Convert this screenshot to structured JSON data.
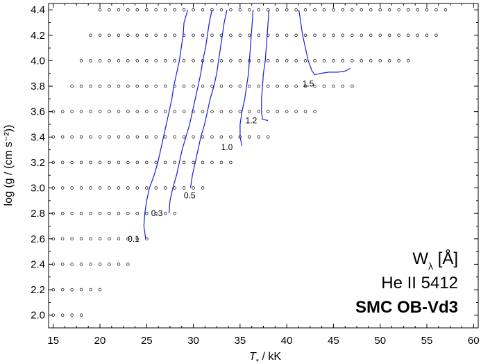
{
  "chart_data": {
    "type": "scatter",
    "xlabel_main": "T",
    "xlabel_sub": "*",
    "xlabel_unit": " / kK",
    "ylabel": "log (g / (cm s⁻²))",
    "xlim": [
      14.5,
      60.5
    ],
    "ylim": [
      1.9,
      4.45
    ],
    "x_ticks": [
      "15",
      "20",
      "25",
      "30",
      "35",
      "40",
      "45",
      "50",
      "55",
      "60"
    ],
    "y_ticks": [
      "2.0",
      "2.2",
      "2.4",
      "2.6",
      "2.8",
      "3.0",
      "3.2",
      "3.4",
      "3.6",
      "3.8",
      "4.0",
      "4.2",
      "4.4"
    ],
    "grid": false,
    "model_grid": [
      {
        "logg": 2.0,
        "teff": [
          15,
          16,
          17,
          18
        ]
      },
      {
        "logg": 2.2,
        "teff": [
          15,
          16,
          17,
          18,
          19,
          20
        ]
      },
      {
        "logg": 2.4,
        "teff": [
          15,
          16,
          17,
          18,
          19,
          20,
          21,
          22,
          23
        ]
      },
      {
        "logg": 2.6,
        "teff": [
          15,
          16,
          17,
          18,
          19,
          20,
          21,
          22,
          23,
          24,
          25
        ]
      },
      {
        "logg": 2.8,
        "teff": [
          15,
          16,
          17,
          18,
          19,
          20,
          21,
          22,
          23,
          24,
          25,
          26,
          27,
          28
        ]
      },
      {
        "logg": 3.0,
        "teff": [
          15,
          16,
          17,
          18,
          19,
          20,
          21,
          22,
          23,
          24,
          25,
          26,
          27,
          28,
          29,
          30,
          31
        ]
      },
      {
        "logg": 3.2,
        "teff": [
          15,
          16,
          17,
          18,
          19,
          20,
          21,
          22,
          23,
          24,
          25,
          26,
          27,
          28,
          29,
          30,
          31,
          32,
          33,
          34
        ]
      },
      {
        "logg": 3.4,
        "teff": [
          15,
          16,
          17,
          18,
          19,
          20,
          21,
          22,
          23,
          24,
          25,
          26,
          27,
          28,
          29,
          30,
          31,
          32,
          33,
          34,
          35,
          36,
          37,
          38
        ]
      },
      {
        "logg": 3.6,
        "teff": [
          15,
          16,
          17,
          18,
          19,
          20,
          21,
          22,
          23,
          24,
          25,
          26,
          27,
          28,
          29,
          30,
          31,
          32,
          33,
          34,
          35,
          36,
          37,
          38,
          39,
          40,
          41,
          42,
          43
        ]
      },
      {
        "logg": 3.8,
        "teff": [
          17,
          18,
          19,
          20,
          21,
          22,
          23,
          24,
          25,
          26,
          27,
          28,
          29,
          30,
          31,
          32,
          33,
          34,
          35,
          36,
          37,
          38,
          39,
          40,
          41,
          42,
          43,
          44,
          45,
          46,
          47
        ]
      },
      {
        "logg": 4.0,
        "teff": [
          18,
          19,
          20,
          21,
          22,
          23,
          24,
          25,
          26,
          27,
          28,
          29,
          30,
          31,
          32,
          33,
          34,
          35,
          36,
          37,
          38,
          39,
          40,
          41,
          42,
          43,
          44,
          45,
          46,
          47,
          48,
          49,
          50,
          51,
          52,
          53
        ]
      },
      {
        "logg": 4.2,
        "teff": [
          19,
          20,
          21,
          22,
          23,
          24,
          25,
          26,
          27,
          28,
          29,
          30,
          31,
          32,
          33,
          34,
          35,
          36,
          37,
          38,
          39,
          40,
          41,
          42,
          43,
          44,
          45,
          46,
          47,
          48,
          49,
          50,
          51,
          52,
          53,
          54,
          55,
          56
        ]
      },
      {
        "logg": 4.4,
        "teff": [
          20,
          21,
          22,
          23,
          24,
          25,
          26,
          27,
          28,
          29,
          30,
          31,
          32,
          33,
          34,
          35,
          36,
          37,
          38,
          39,
          40,
          41,
          42,
          43,
          44,
          45,
          46,
          47,
          48,
          49,
          50,
          51,
          52,
          53,
          54,
          55,
          56,
          57
        ]
      }
    ],
    "contours": [
      {
        "label": "0.1",
        "label_at": [
          23.6,
          2.6
        ],
        "points": [
          [
            24.9,
            2.6
          ],
          [
            24.7,
            2.7
          ],
          [
            24.8,
            2.8
          ],
          [
            25.0,
            2.9
          ],
          [
            25.3,
            3.0
          ],
          [
            25.8,
            3.1
          ],
          [
            26.2,
            3.2
          ],
          [
            26.5,
            3.3
          ],
          [
            26.8,
            3.4
          ],
          [
            27.1,
            3.5
          ],
          [
            27.4,
            3.6
          ],
          [
            27.7,
            3.7
          ],
          [
            27.9,
            3.8
          ],
          [
            28.2,
            3.9
          ],
          [
            28.5,
            4.0
          ],
          [
            28.7,
            4.1
          ],
          [
            28.9,
            4.2
          ],
          [
            29.0,
            4.3
          ],
          [
            29.4,
            4.4
          ]
        ]
      },
      {
        "label": "0.3",
        "label_at": [
          26.1,
          2.8
        ],
        "points": [
          [
            27.4,
            2.8
          ],
          [
            27.5,
            2.9
          ],
          [
            27.8,
            3.0
          ],
          [
            28.2,
            3.1
          ],
          [
            28.5,
            3.2
          ],
          [
            28.8,
            3.3
          ],
          [
            29.2,
            3.4
          ],
          [
            29.6,
            3.5
          ],
          [
            29.9,
            3.6
          ],
          [
            30.2,
            3.7
          ],
          [
            30.5,
            3.8
          ],
          [
            30.8,
            3.9
          ],
          [
            31.0,
            4.0
          ],
          [
            31.3,
            4.1
          ],
          [
            31.5,
            4.2
          ],
          [
            31.7,
            4.3
          ],
          [
            32.0,
            4.4
          ]
        ]
      },
      {
        "label": "0.5",
        "label_at": [
          29.6,
          2.94
        ],
        "points": [
          [
            29.7,
            3.0
          ],
          [
            29.9,
            3.1
          ],
          [
            30.2,
            3.2
          ],
          [
            30.5,
            3.3
          ],
          [
            30.8,
            3.4
          ],
          [
            31.2,
            3.5
          ],
          [
            31.5,
            3.6
          ],
          [
            31.8,
            3.7
          ],
          [
            32.2,
            3.8
          ],
          [
            32.5,
            3.9
          ],
          [
            32.7,
            4.0
          ],
          [
            32.9,
            4.1
          ],
          [
            33.1,
            4.2
          ],
          [
            33.3,
            4.3
          ],
          [
            33.6,
            4.4
          ]
        ]
      },
      {
        "label": "1.0",
        "label_at": [
          33.6,
          3.32
        ],
        "points": [
          [
            35.2,
            3.33
          ],
          [
            35.0,
            3.4
          ],
          [
            35.0,
            3.5
          ],
          [
            35.2,
            3.6
          ],
          [
            35.5,
            3.7
          ],
          [
            35.7,
            3.8
          ],
          [
            35.9,
            3.9
          ],
          [
            36.0,
            4.0
          ],
          [
            36.1,
            4.1
          ],
          [
            36.2,
            4.2
          ],
          [
            36.3,
            4.3
          ],
          [
            36.4,
            4.4
          ]
        ]
      },
      {
        "label": "1.2",
        "label_at": [
          36.2,
          3.53
        ],
        "points": [
          [
            38.0,
            3.53
          ],
          [
            37.4,
            3.54
          ],
          [
            37.3,
            3.6
          ],
          [
            37.3,
            3.7
          ],
          [
            37.4,
            3.8
          ],
          [
            37.5,
            3.9
          ],
          [
            37.7,
            4.0
          ],
          [
            37.8,
            4.1
          ],
          [
            37.9,
            4.2
          ],
          [
            38.0,
            4.3
          ],
          [
            38.1,
            4.4
          ]
        ]
      },
      {
        "label": "1.5",
        "label_at": [
          42.3,
          3.82
        ],
        "points": [
          [
            46.8,
            3.94
          ],
          [
            46.3,
            3.92
          ],
          [
            45.5,
            3.91
          ],
          [
            44.5,
            3.91
          ],
          [
            43.6,
            3.9
          ],
          [
            43.0,
            3.89
          ],
          [
            42.7,
            3.92
          ],
          [
            42.3,
            4.0
          ],
          [
            42.0,
            4.1
          ],
          [
            41.7,
            4.2
          ],
          [
            41.5,
            4.3
          ],
          [
            41.3,
            4.4
          ]
        ]
      }
    ],
    "annotation": {
      "line1_main": "W",
      "line1_sub": "λ",
      "line1_unit": "  [Å]",
      "line2": "He II 5412",
      "line3": "SMC OB-Vd3"
    },
    "contour_color": "#1a1adb"
  }
}
